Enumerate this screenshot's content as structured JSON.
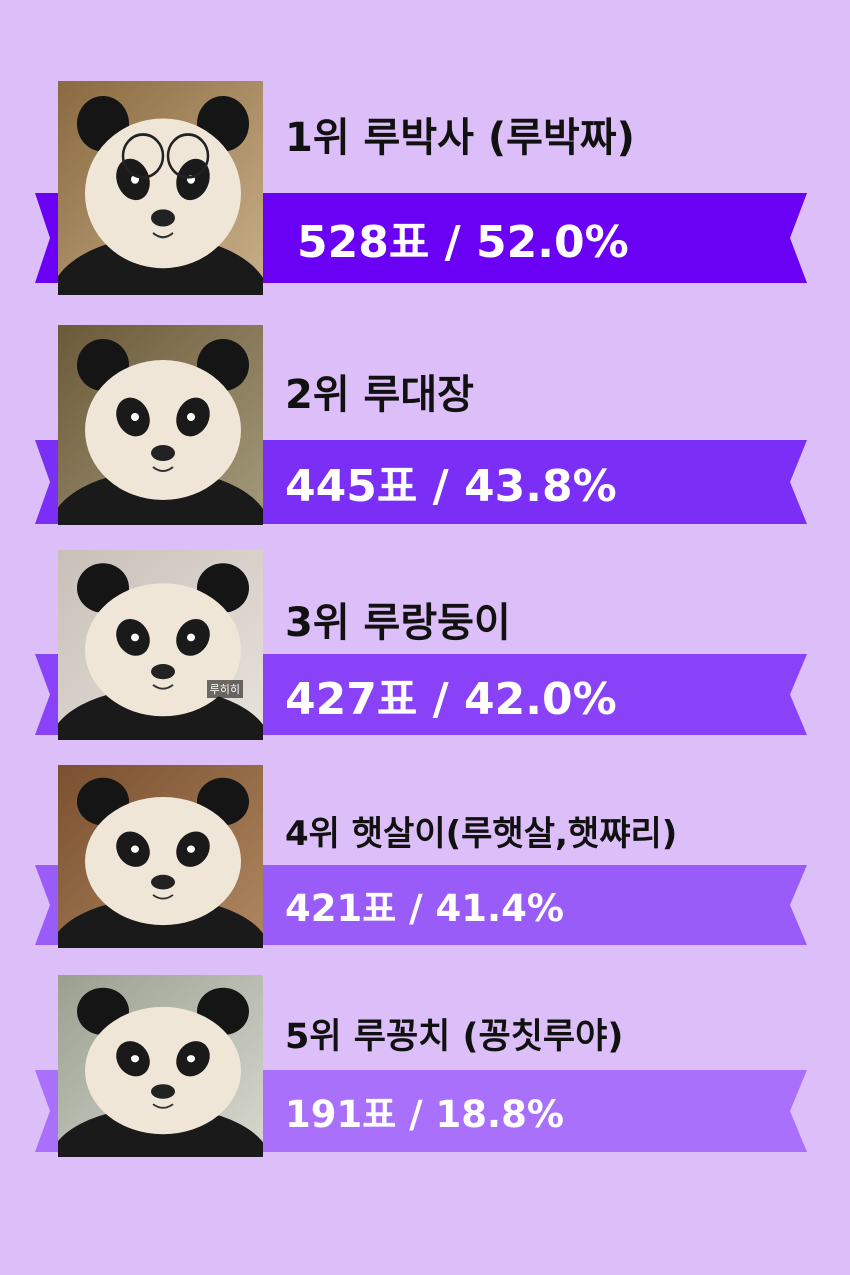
{
  "ranking": [
    {
      "title": "1위 루박사 (루박짜)",
      "votes": "528표 / 52.0%",
      "vote_count": 528,
      "percent": 52.0,
      "ribbon_color": "#6a00f4",
      "photo": "panda-with-glasses-photo"
    },
    {
      "title": "2위 루대장",
      "votes": "445표 / 43.8%",
      "vote_count": 445,
      "percent": 43.8,
      "ribbon_color": "#7a2ef6",
      "photo": "panda-climbing-branch-photo"
    },
    {
      "title": "3위 루랑둥이",
      "votes": "427표 / 42.0%",
      "vote_count": 427,
      "percent": 42.0,
      "ribbon_color": "#8a42f8",
      "photo": "panda-lying-face-photo",
      "photo_caption": "루히히"
    },
    {
      "title": "4위 햇살이(루햇살,햇쨔리)",
      "votes": "421표 / 41.4%",
      "vote_count": 421,
      "percent": 41.4,
      "ribbon_color": "#9a5cf9",
      "photo": "panda-smiling-photo"
    },
    {
      "title": "5위 루꽁치 (꽁칫루야)",
      "votes": "191표 / 18.8%",
      "vote_count": 191,
      "percent": 18.8,
      "ribbon_color": "#a870fb",
      "photo": "panda-face-closeup-photo"
    }
  ],
  "background_color": "#dcbff8"
}
